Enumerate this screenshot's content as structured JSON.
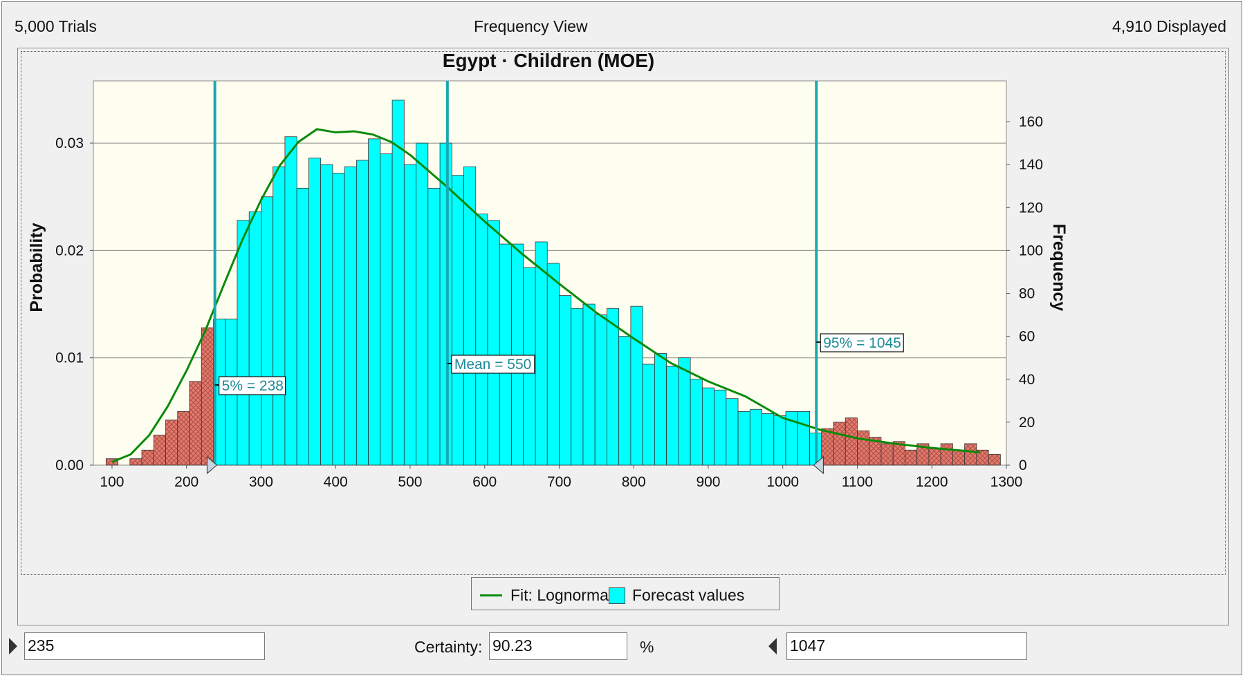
{
  "header": {
    "trials": "5,000 Trials",
    "view": "Frequency View",
    "displayed": "4,910 Displayed"
  },
  "legend": {
    "fit_label": "Fit: Lognormal",
    "forecast_label": "Forecast values"
  },
  "certainty": {
    "lower_value": "235",
    "label": "Certainty:",
    "value": "90.23",
    "unit": "%",
    "upper_value": "1047"
  },
  "colors": {
    "in_range_bar": "#00ffff",
    "out_range_bar": "#e2796c",
    "fit_line": "#0a8a0a",
    "marker_line": "#1aa8b0",
    "plot_bg": "#fefef0"
  },
  "icons": {
    "lower_grabber": "triangle-right-icon",
    "upper_grabber": "triangle-left-icon"
  },
  "chart_data": {
    "type": "bar",
    "title": "Egypt · Children (MOE)",
    "ylabel": "Probability",
    "ylabel_right": "Frequency",
    "xlim": [
      75,
      1300
    ],
    "ylim": [
      0,
      0.0358
    ],
    "ylim_right": [
      0,
      179
    ],
    "x_ticks": [
      100,
      200,
      300,
      400,
      500,
      600,
      700,
      800,
      900,
      1000,
      1100,
      1200,
      1300
    ],
    "y_ticks": [
      0.0,
      0.01,
      0.02,
      0.03
    ],
    "y_tick_labels": [
      "0.00",
      "0.01",
      "0.02",
      "0.03"
    ],
    "y_right_ticks": [
      0,
      20,
      40,
      60,
      80,
      100,
      120,
      140,
      160
    ],
    "grid": "horizontal",
    "bin_width": 16,
    "bins_start": 92,
    "series": [
      {
        "name": "Forecast values",
        "frequencies": [
          3,
          0,
          3,
          7,
          14,
          21,
          25,
          39,
          64,
          68,
          68,
          114,
          118,
          125,
          139,
          153,
          129,
          143,
          140,
          136,
          139,
          142,
          152,
          145,
          170,
          140,
          150,
          129,
          150,
          135,
          139,
          117,
          114,
          103,
          103,
          92,
          104,
          94,
          79,
          73,
          75,
          70,
          73,
          60,
          74,
          47,
          52,
          46,
          50,
          40,
          36,
          35,
          31,
          25,
          26,
          24,
          23,
          25,
          25,
          15,
          17,
          20,
          22,
          16,
          13,
          10,
          11,
          7,
          10,
          8,
          10,
          7,
          10,
          7,
          5
        ]
      },
      {
        "name": "Fit: Lognormal",
        "x": [
          100,
          125,
          150,
          175,
          200,
          225,
          250,
          275,
          300,
          325,
          350,
          375,
          400,
          425,
          450,
          475,
          500,
          550,
          600,
          650,
          700,
          750,
          800,
          850,
          900,
          950,
          1000,
          1050,
          1100,
          1150,
          1200,
          1265
        ],
        "values": [
          0.0003,
          0.001,
          0.0028,
          0.0055,
          0.0088,
          0.0125,
          0.0168,
          0.021,
          0.0247,
          0.0279,
          0.0301,
          0.0313,
          0.031,
          0.0311,
          0.0308,
          0.0301,
          0.0289,
          0.0259,
          0.0227,
          0.0197,
          0.0169,
          0.0142,
          0.0118,
          0.0095,
          0.0078,
          0.0064,
          0.0044,
          0.0033,
          0.0025,
          0.002,
          0.0016,
          0.0012
        ]
      }
    ],
    "markers": [
      {
        "x": 238,
        "label": "5% = 238"
      },
      {
        "x": 550,
        "label": "Mean = 550"
      },
      {
        "x": 1045,
        "label": "95% = 1045"
      }
    ],
    "certainty_range": [
      235,
      1047
    ]
  }
}
